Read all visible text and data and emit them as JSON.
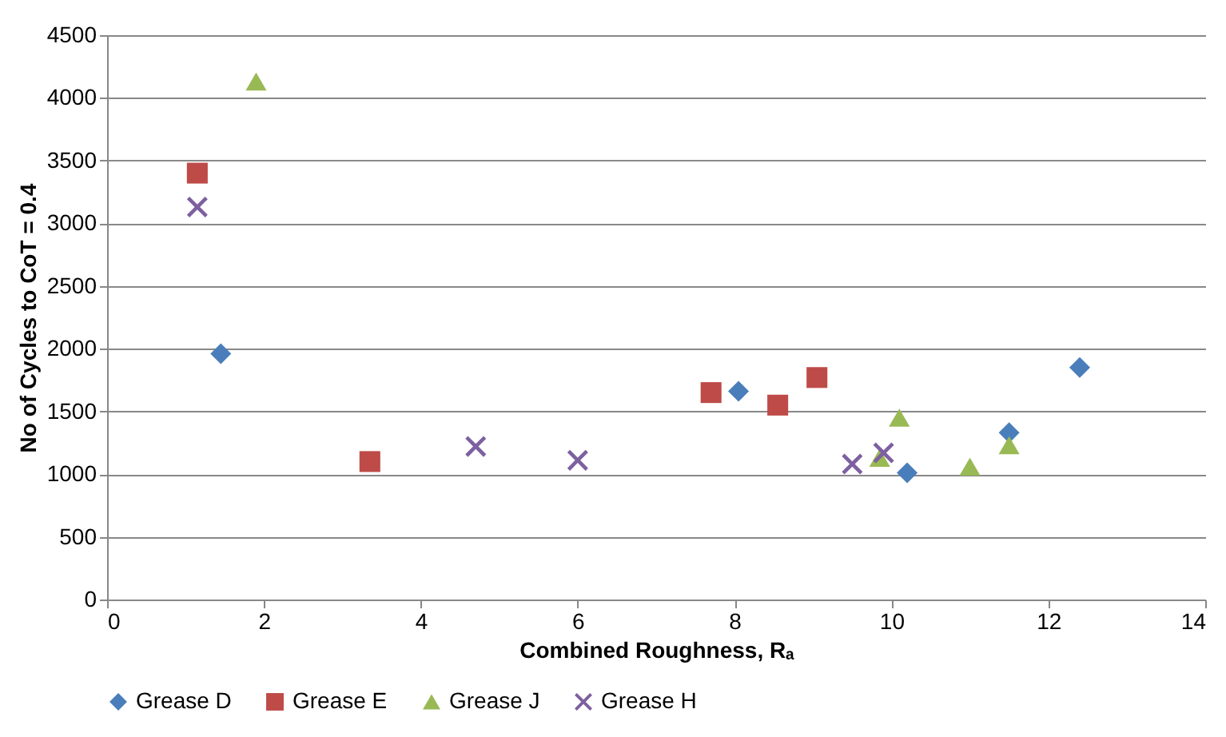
{
  "chart_data": {
    "type": "scatter",
    "xlabel": "Combined Roughness, Rₐ",
    "ylabel": "No of Cycles to CoT = 0.4",
    "xlim": [
      0,
      14
    ],
    "xticks": [
      0,
      2,
      4,
      6,
      8,
      10,
      12,
      14
    ],
    "ylim": [
      0,
      4500
    ],
    "yticks": [
      0,
      500,
      1000,
      1500,
      2000,
      2500,
      3000,
      3500,
      4000,
      4500
    ],
    "grid": "y",
    "legend": "bottom",
    "series": [
      {
        "name": "Grease D",
        "color": "#4a7ebb",
        "marker": "diamond",
        "x": [
          1.45,
          8.05,
          10.2,
          11.5,
          12.4
        ],
        "values": [
          1960,
          1660,
          1010,
          1330,
          1850
        ]
      },
      {
        "name": "Grease E",
        "color": "#be4b48",
        "marker": "square",
        "x": [
          1.15,
          3.35,
          7.7,
          8.55,
          9.05
        ],
        "values": [
          3400,
          1100,
          1650,
          1550,
          1770
        ]
      },
      {
        "name": "Grease J",
        "color": "#98b954",
        "marker": "triangle",
        "x": [
          1.9,
          10.1,
          9.85,
          11.0,
          11.5
        ],
        "values": [
          4130,
          1450,
          1130,
          1060,
          1230
        ]
      },
      {
        "name": "Grease H",
        "color": "#7d60a0",
        "marker": "cross",
        "x": [
          1.15,
          4.7,
          6.0,
          9.5,
          9.9
        ],
        "values": [
          3130,
          1220,
          1110,
          1080,
          1170
        ]
      }
    ]
  }
}
